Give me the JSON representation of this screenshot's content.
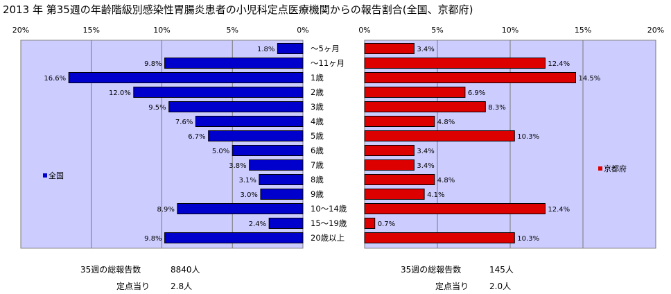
{
  "title": "2013 年 第35週の年齢階級別感染性胃腸炎患者の小児科定点医療機関からの報告割合(全国、京都府)",
  "chart_data": {
    "type": "bar",
    "orientation": "horizontal",
    "categories": [
      "～5ヶ月",
      "～11ヶ月",
      "1歳",
      "2歳",
      "3歳",
      "4歳",
      "5歳",
      "6歳",
      "7歳",
      "8歳",
      "9歳",
      "10～14歳",
      "15～19歳",
      "20歳以上"
    ],
    "unit": "%",
    "xlim": [
      0,
      20
    ],
    "ticks": [
      0,
      5,
      10,
      15,
      20
    ],
    "grid": true,
    "series": [
      {
        "name": "全国",
        "side": "left",
        "color": "#0000cc",
        "values": [
          1.8,
          9.8,
          16.6,
          12.0,
          9.5,
          7.6,
          6.7,
          5.0,
          3.8,
          3.1,
          3.0,
          8.9,
          2.4,
          9.8
        ],
        "labels": [
          "1.8%",
          "9.8%",
          "16.6%",
          "12.0%",
          "9.5%",
          "7.6%",
          "6.7%",
          "5.0%",
          "3.8%",
          "3.1%",
          "3.0%",
          "8.9%",
          "2.4%",
          "9.8%"
        ]
      },
      {
        "name": "京都府",
        "side": "right",
        "color": "#dd0000",
        "values": [
          3.4,
          12.4,
          14.5,
          6.9,
          8.3,
          4.8,
          10.3,
          3.4,
          3.4,
          4.8,
          4.1,
          12.4,
          0.7,
          10.3
        ],
        "labels": [
          "3.4%",
          "12.4%",
          "14.5%",
          "6.9%",
          "8.3%",
          "4.8%",
          "10.3%",
          "3.4%",
          "3.4%",
          "4.8%",
          "4.1%",
          "12.4%",
          "0.7%",
          "10.3%"
        ]
      }
    ],
    "plot_background": "#ccccff"
  },
  "footer": {
    "left": {
      "total_label": "35週の総報告数",
      "total_value": "8840人",
      "per_site_label": "定点当り",
      "per_site_value": "2.8人"
    },
    "right": {
      "total_label": "35週の総報告数",
      "total_value": "145人",
      "per_site_label": "定点当り",
      "per_site_value": "2.0人"
    }
  }
}
